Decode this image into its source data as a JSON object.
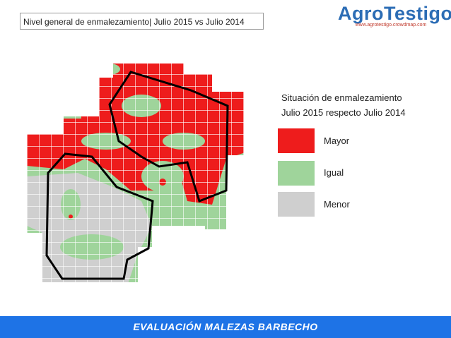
{
  "header": {
    "title": "Nivel general de enmalezamiento| Julio 2015 vs Julio 2014",
    "logo": "AgroTestigo",
    "url": "www.agrotestigo.crowdmap.com"
  },
  "legend": {
    "title": [
      "Situación de enmalezamiento",
      "Julio 2015 respecto Julio 2014"
    ],
    "items": [
      "Mayor",
      "Igual",
      "Menor"
    ]
  },
  "footer": {
    "text": "EVALUACIÓN MALEZAS BARBECHO"
  }
}
